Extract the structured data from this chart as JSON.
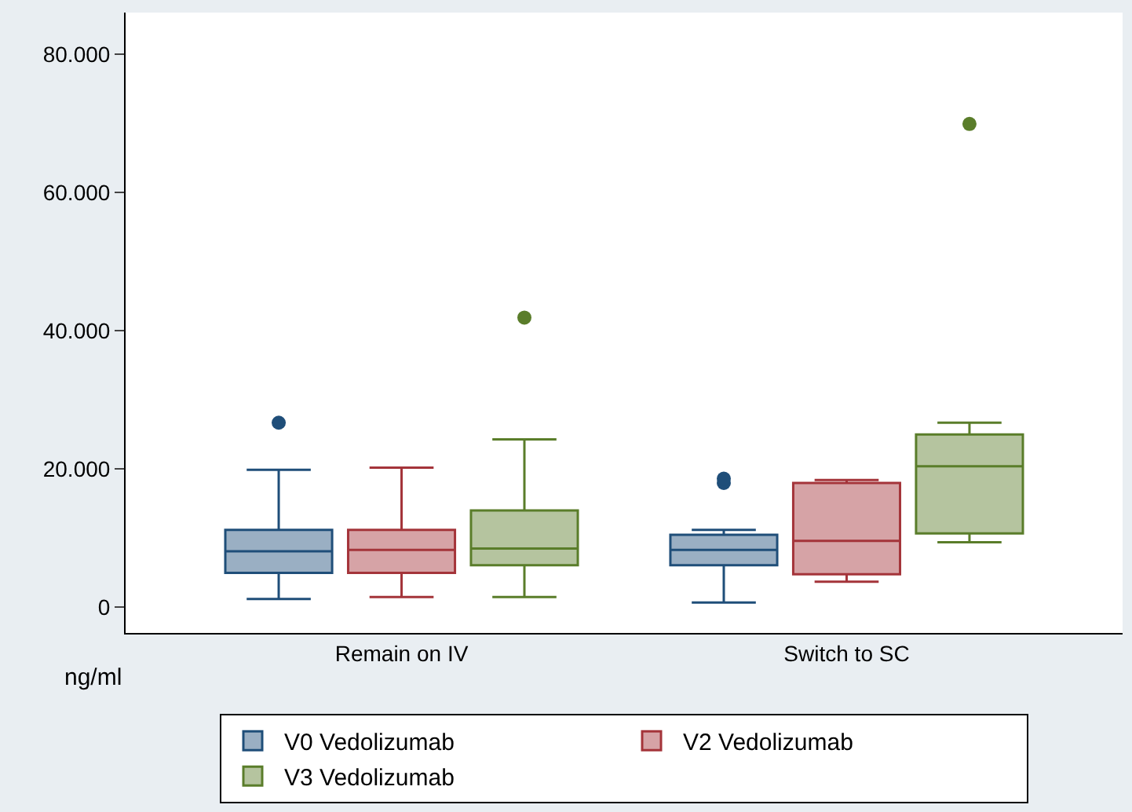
{
  "chart_data": {
    "type": "box",
    "categories": [
      "Remain on IV",
      "Switch to SC"
    ],
    "ylabel": "ng/ml",
    "ylim": [
      -3700,
      86000
    ],
    "yticks": [
      {
        "value": 0,
        "label": "0"
      },
      {
        "value": 20000,
        "label": "20.000"
      },
      {
        "value": 40000,
        "label": "40.000"
      },
      {
        "value": 60000,
        "label": "60.000"
      },
      {
        "value": 80000,
        "label": "80.000"
      }
    ],
    "legend": "bottom",
    "series": [
      {
        "name": "V0 Vedolizumab",
        "color": "#1f4e79",
        "boxes": [
          {
            "low": 1200,
            "q1": 5000,
            "median": 8100,
            "q3": 11200,
            "high": 19900,
            "outliers": [
              26700
            ]
          },
          {
            "low": 700,
            "q1": 6100,
            "median": 8300,
            "q3": 10500,
            "high": 11200,
            "outliers": [
              18000,
              18600
            ]
          }
        ]
      },
      {
        "name": "V2 Vedolizumab",
        "color": "#a4343a",
        "boxes": [
          {
            "low": 1500,
            "q1": 5000,
            "median": 8300,
            "q3": 11200,
            "high": 20200
          },
          {
            "low": 3700,
            "q1": 4800,
            "median": 9600,
            "q3": 18000,
            "high": 18400
          }
        ]
      },
      {
        "name": "V3 Vedolizumab",
        "color": "#5a7d2a",
        "boxes": [
          {
            "low": 1500,
            "q1": 6100,
            "median": 8500,
            "q3": 14000,
            "high": 24300,
            "outliers": [
              41900
            ]
          },
          {
            "low": 9400,
            "q1": 10700,
            "median": 20400,
            "q3": 25000,
            "high": 26700,
            "outliers": [
              69900
            ]
          }
        ]
      }
    ]
  }
}
